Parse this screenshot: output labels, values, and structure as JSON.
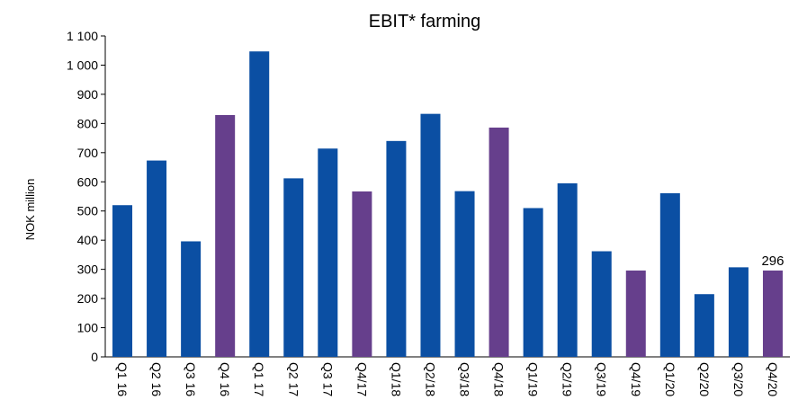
{
  "chart_data": {
    "type": "bar",
    "title": "EBIT* farming",
    "xlabel": "",
    "ylabel": "NOK million",
    "ylim": [
      0,
      1100
    ],
    "yticks": [
      {
        "value": 0,
        "label": "0"
      },
      {
        "value": 100,
        "label": "100"
      },
      {
        "value": 200,
        "label": "200"
      },
      {
        "value": 300,
        "label": "300"
      },
      {
        "value": 400,
        "label": "400"
      },
      {
        "value": 500,
        "label": "500"
      },
      {
        "value": 600,
        "label": "600"
      },
      {
        "value": 700,
        "label": "700"
      },
      {
        "value": 800,
        "label": "800"
      },
      {
        "value": 900,
        "label": "900"
      },
      {
        "value": 1000,
        "label": "1 000"
      },
      {
        "value": 1100,
        "label": "1 100"
      }
    ],
    "grid": false,
    "categories": [
      "Q1 16",
      "Q2 16",
      "Q3 16",
      "Q4 16",
      "Q1 17",
      "Q2 17",
      "Q3 17",
      "Q4/17",
      "Q1/18",
      "Q2/18",
      "Q3/18",
      "Q4/18",
      "Q1/19",
      "Q2/19",
      "Q3/19",
      "Q4/19",
      "Q1/20",
      "Q2/20",
      "Q3/20",
      "Q4/20"
    ],
    "values": [
      520,
      673,
      396,
      829,
      1047,
      612,
      714,
      567,
      740,
      833,
      568,
      786,
      510,
      595,
      362,
      296,
      561,
      215,
      307,
      296
    ],
    "highlight": [
      false,
      false,
      false,
      true,
      false,
      false,
      false,
      true,
      false,
      false,
      false,
      true,
      false,
      false,
      false,
      true,
      false,
      false,
      false,
      true
    ],
    "data_labels": [
      {
        "index": 19,
        "text": "296"
      }
    ],
    "colors": {
      "primary": "#0B4FA3",
      "highlight": "#663F8C"
    }
  }
}
